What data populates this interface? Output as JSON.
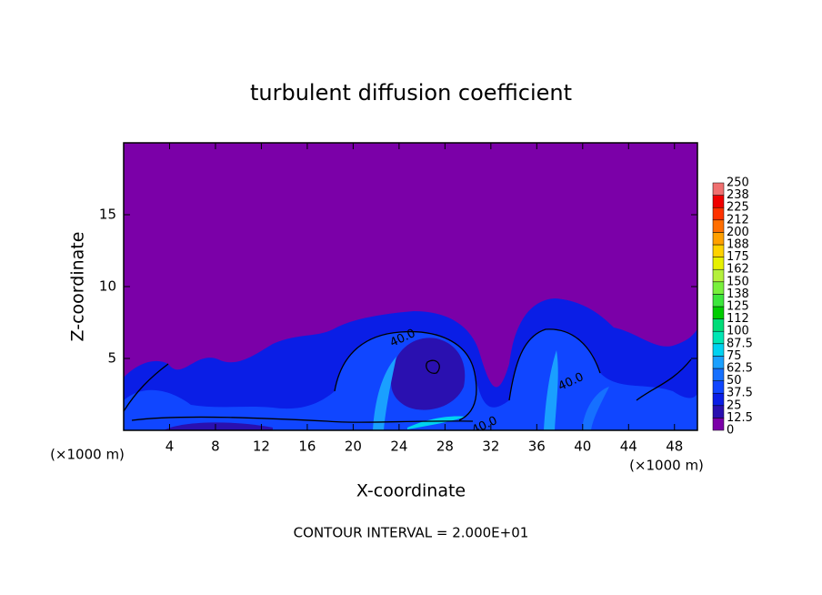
{
  "chart_data": {
    "type": "contour",
    "title": "turbulent diffusion coefficient",
    "xlabel": "X-coordinate",
    "ylabel": "Z-coordinate",
    "xunit": "(×1000 m)",
    "yunit": "(×1000 m)",
    "xlim": [
      0,
      50
    ],
    "xticks": [
      4,
      8,
      12,
      16,
      20,
      24,
      28,
      32,
      36,
      40,
      44,
      48
    ],
    "ylim": [
      0,
      20
    ],
    "yticks": [
      5,
      10,
      15
    ],
    "footer": "CONTOUR INTERVAL = 2.000E+01",
    "contour_labels": [
      "40.0",
      "40.0",
      "40.0"
    ],
    "colorbar": {
      "levels": [
        0,
        12.5,
        25,
        37.5,
        50,
        62.5,
        75,
        87.5,
        100,
        112,
        125,
        138,
        150,
        162,
        175,
        188,
        200,
        212,
        225,
        238,
        250
      ],
      "colors": [
        "#7b00a8",
        "#2a10b0",
        "#0a1ee6",
        "#1046ff",
        "#1670ff",
        "#1aa0ff",
        "#00d2f0",
        "#00e6b4",
        "#00dc78",
        "#00cc00",
        "#3ce63c",
        "#78f03c",
        "#b4f03c",
        "#e6f000",
        "#ffd200",
        "#ffa000",
        "#ff6e00",
        "#ff3200",
        "#f00000",
        "#f07070"
      ]
    }
  }
}
